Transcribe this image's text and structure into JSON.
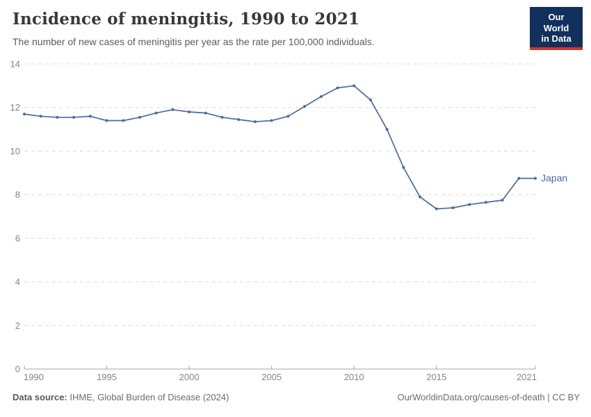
{
  "header": {
    "title": "Incidence of meningitis, 1990 to 2021",
    "subtitle": "The number of new cases of meningitis per year as the rate per 100,000 individuals.",
    "logo": {
      "line1": "Our World",
      "line2": "in Data",
      "bg_color": "#12305c",
      "accent_color": "#d0342c"
    }
  },
  "footer": {
    "source_label": "Data source:",
    "source_text": " IHME, Global Burden of Disease (2024)",
    "credit": "OurWorldinData.org/causes-of-death | CC BY"
  },
  "chart_data": {
    "type": "line",
    "title": "Incidence of meningitis, 1990 to 2021",
    "xlabel": "",
    "ylabel": "",
    "x": [
      1990,
      1991,
      1992,
      1993,
      1994,
      1995,
      1996,
      1997,
      1998,
      1999,
      2000,
      2001,
      2002,
      2003,
      2004,
      2005,
      2006,
      2007,
      2008,
      2009,
      2010,
      2011,
      2012,
      2013,
      2014,
      2015,
      2016,
      2017,
      2018,
      2019,
      2020,
      2021
    ],
    "series": [
      {
        "name": "Japan",
        "color": "#4c6a9c",
        "values": [
          11.7,
          11.6,
          11.55,
          11.55,
          11.6,
          11.4,
          11.4,
          11.55,
          11.75,
          11.9,
          11.8,
          11.75,
          11.55,
          11.45,
          11.35,
          11.4,
          11.6,
          12.05,
          12.5,
          12.9,
          13.0,
          12.35,
          11.0,
          9.25,
          7.9,
          7.35,
          7.4,
          7.55,
          7.65,
          7.75,
          8.75,
          8.75
        ]
      }
    ],
    "xlim": [
      1990,
      2021
    ],
    "ylim": [
      0,
      14
    ],
    "x_ticks": [
      1990,
      1995,
      2000,
      2005,
      2010,
      2015,
      2021
    ],
    "y_ticks": [
      0,
      2,
      4,
      6,
      8,
      10,
      12,
      14
    ],
    "grid": "horizontal-dashed",
    "legend": "line-end-label",
    "grid_color": "#dcdcdc",
    "axis_color": "#a5a5a5",
    "tick_label_color": "#858585"
  }
}
